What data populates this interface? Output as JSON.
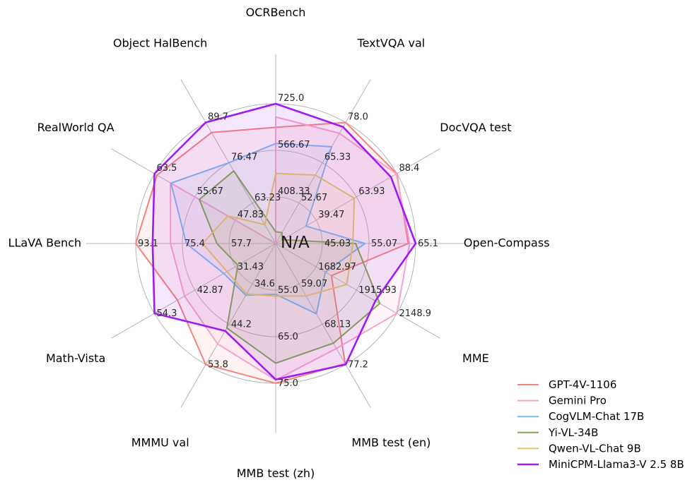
{
  "chart_data": {
    "type": "radar",
    "title": "",
    "center_label": "N/A",
    "grid": {
      "rings": 3,
      "color": "#b5b5b5",
      "spokes": 12
    },
    "legend_position": "bottom-right",
    "categories": [
      "OCRBench",
      "TextVQA val",
      "DocVQA test",
      "Open-Compass",
      "MME",
      "MMB test (en)",
      "MMB test (zh)",
      "MMMU val",
      "Math-Vista",
      "LLaVA Bench",
      "RealWorld QA",
      "Object HalBench"
    ],
    "axes": [
      {
        "label": "OCRBench",
        "min": 250,
        "max": 725,
        "tick_labels": [
          "408.33",
          "566.67",
          "725.0"
        ]
      },
      {
        "label": "TextVQA val",
        "min": 40,
        "max": 78,
        "tick_labels": [
          "52.67",
          "65.33",
          "78.0"
        ]
      },
      {
        "label": "DocVQA test",
        "min": 15,
        "max": 88.4,
        "tick_labels": [
          "39.47",
          "63.93",
          "88.4"
        ]
      },
      {
        "label": "Open-Compass",
        "min": 35,
        "max": 65.1,
        "tick_labels": [
          "45.03",
          "55.07",
          "65.1"
        ]
      },
      {
        "label": "MME",
        "min": 1450,
        "max": 2148.9,
        "tick_labels": [
          "1682.97",
          "1915.93",
          "2148.9"
        ]
      },
      {
        "label": "MMB test (en)",
        "min": 50,
        "max": 77.2,
        "tick_labels": [
          "59.07",
          "68.13",
          "77.2"
        ]
      },
      {
        "label": "MMB test (zh)",
        "min": 45,
        "max": 75,
        "tick_labels": [
          "55.0",
          "65.0",
          "75.0"
        ]
      },
      {
        "label": "MMMU val",
        "min": 25,
        "max": 53.8,
        "tick_labels": [
          "34.6",
          "44.2",
          "53.8"
        ]
      },
      {
        "label": "Math-Vista",
        "min": 20,
        "max": 54.3,
        "tick_labels": [
          "31.43",
          "42.87",
          "54.3"
        ]
      },
      {
        "label": "LLaVA Bench",
        "min": 40,
        "max": 93.1,
        "tick_labels": [
          "57.7",
          "75.4",
          "93.1"
        ]
      },
      {
        "label": "RealWorld QA",
        "min": 40,
        "max": 63.5,
        "tick_labels": [
          "47.83",
          "55.67",
          "63.5"
        ]
      },
      {
        "label": "Object HalBench",
        "min": 50,
        "max": 89.7,
        "tick_labels": [
          "63.23",
          "76.47",
          "89.7"
        ]
      }
    ],
    "series": [
      {
        "name": "GPT-4V-1106",
        "color": "#F4837D",
        "values": [
          645,
          78.0,
          88.4,
          63.5,
          1771.5,
          77.0,
          75.0,
          53.8,
          47.8,
          93.1,
          63.0,
          86.4
        ]
      },
      {
        "name": "Gemini Pro",
        "color": "#F8A1CB",
        "values": [
          680,
          74.6,
          88.1,
          63.8,
          2148.9,
          73.6,
          74.3,
          48.9,
          45.8,
          79.9,
          60.4,
          null
        ]
      },
      {
        "name": "CogVLM-Chat 17B",
        "color": "#7EB6F0",
        "values": [
          590,
          70.4,
          33.3,
          54.2,
          1736.6,
          65.8,
          55.9,
          37.3,
          34.7,
          73.9,
          60.3,
          76.5
        ]
      },
      {
        "name": "Yi-VL-34B",
        "color": "#7FA653",
        "values": [
          290,
          43.4,
          19.0,
          52.2,
          2050.2,
          72.4,
          70.7,
          45.1,
          30.7,
          62.3,
          54.8,
          73.8
        ]
      },
      {
        "name": "Qwen-VL-Chat 9B",
        "color": "#E2C266",
        "values": [
          488,
          61.5,
          62.6,
          51.6,
          1860.0,
          61.8,
          56.3,
          37.0,
          33.8,
          67.7,
          49.3,
          56.2
        ]
      },
      {
        "name": "MiniCPM-Llama3-V 2.5 8B",
        "color": "#A01BF2",
        "values": [
          725,
          76.6,
          84.8,
          65.1,
          2024.6,
          77.2,
          74.2,
          45.8,
          54.3,
          86.7,
          63.5,
          89.7
        ]
      }
    ]
  }
}
